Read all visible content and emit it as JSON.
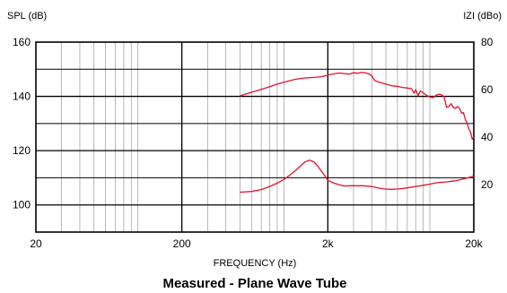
{
  "chart_data": {
    "type": "line",
    "title": "Measured - Plane Wave Tube",
    "xlabel": "FREQUENCY (Hz)",
    "ylabel_left": "SPL (dB)",
    "ylabel_right": "IZI (dBo)",
    "x_scale": "log",
    "xlim": [
      20,
      20000
    ],
    "ylim_left": [
      90,
      160
    ],
    "ylim_right": [
      0,
      80
    ],
    "x_ticks": [
      {
        "value": 20,
        "label": "20"
      },
      {
        "value": 200,
        "label": "200"
      },
      {
        "value": 2000,
        "label": "2k"
      },
      {
        "value": 20000,
        "label": "20k"
      }
    ],
    "y_ticks_left": [
      {
        "value": 100,
        "label": "100"
      },
      {
        "value": 120,
        "label": "120"
      },
      {
        "value": 140,
        "label": "140"
      },
      {
        "value": 160,
        "label": "160"
      }
    ],
    "y_ticks_right": [
      {
        "value": 20,
        "label": "20"
      },
      {
        "value": 40,
        "label": "40"
      },
      {
        "value": 60,
        "label": "60"
      },
      {
        "value": 80,
        "label": "80"
      }
    ],
    "grid": true,
    "colors": {
      "series": "#e8112d",
      "grid_major": "#000000",
      "grid_minor": "#9a9a9a"
    },
    "series": [
      {
        "axis": "left",
        "points": [
          [
            500,
            140.2
          ],
          [
            600,
            141.5
          ],
          [
            700,
            142.6
          ],
          [
            800,
            143.6
          ],
          [
            900,
            144.5
          ],
          [
            1000,
            145.2
          ],
          [
            1100,
            145.8
          ],
          [
            1200,
            146.3
          ],
          [
            1300,
            146.6
          ],
          [
            1400,
            146.8
          ],
          [
            1500,
            146.9
          ],
          [
            1600,
            147.0
          ],
          [
            1700,
            147.1
          ],
          [
            1800,
            147.3
          ],
          [
            1900,
            147.5
          ],
          [
            2000,
            147.8
          ],
          [
            2200,
            148.3
          ],
          [
            2400,
            148.6
          ],
          [
            2600,
            148.4
          ],
          [
            2800,
            148.2
          ],
          [
            3000,
            148.7
          ],
          [
            3200,
            148.5
          ],
          [
            3400,
            148.8
          ],
          [
            3600,
            148.7
          ],
          [
            3800,
            148.3
          ],
          [
            4000,
            147.6
          ],
          [
            4200,
            145.8
          ],
          [
            4500,
            145.2
          ],
          [
            5000,
            144.5
          ],
          [
            5500,
            143.9
          ],
          [
            6000,
            143.7
          ],
          [
            6500,
            143.3
          ],
          [
            7000,
            143.1
          ],
          [
            7500,
            142.8
          ],
          [
            7800,
            141.2
          ],
          [
            8000,
            142.5
          ],
          [
            8300,
            140.3
          ],
          [
            8600,
            142.0
          ],
          [
            9000,
            141.3
          ],
          [
            9500,
            140.4
          ],
          [
            10000,
            139.8
          ],
          [
            10500,
            139.5
          ],
          [
            11000,
            140.4
          ],
          [
            11500,
            140.8
          ],
          [
            12000,
            140.6
          ],
          [
            12500,
            139.9
          ],
          [
            13000,
            136.0
          ],
          [
            13500,
            136.3
          ],
          [
            14000,
            137.3
          ],
          [
            14500,
            135.9
          ],
          [
            15000,
            135.6
          ],
          [
            15500,
            136.3
          ],
          [
            16000,
            135.5
          ],
          [
            16500,
            133.8
          ],
          [
            17000,
            134.0
          ],
          [
            17500,
            131.4
          ],
          [
            18000,
            130.2
          ],
          [
            18500,
            127.9
          ],
          [
            19000,
            126.8
          ],
          [
            19500,
            124.2
          ],
          [
            20000,
            125.1
          ]
        ]
      },
      {
        "axis": "right",
        "points": [
          [
            500,
            16.8
          ],
          [
            600,
            17.1
          ],
          [
            700,
            17.9
          ],
          [
            800,
            19.2
          ],
          [
            900,
            20.6
          ],
          [
            1000,
            22.2
          ],
          [
            1100,
            24.0
          ],
          [
            1200,
            25.9
          ],
          [
            1300,
            27.9
          ],
          [
            1400,
            29.6
          ],
          [
            1500,
            30.3
          ],
          [
            1600,
            29.6
          ],
          [
            1700,
            27.9
          ],
          [
            1800,
            25.8
          ],
          [
            1900,
            23.9
          ],
          [
            2000,
            21.8
          ],
          [
            2200,
            20.6
          ],
          [
            2400,
            19.9
          ],
          [
            2600,
            19.4
          ],
          [
            2800,
            19.5
          ],
          [
            3000,
            19.5
          ],
          [
            3500,
            19.5
          ],
          [
            4000,
            19.2
          ],
          [
            4500,
            18.5
          ],
          [
            5000,
            18.1
          ],
          [
            5500,
            18.0
          ],
          [
            6000,
            18.1
          ],
          [
            7000,
            18.6
          ],
          [
            8000,
            19.2
          ],
          [
            9000,
            19.7
          ],
          [
            10000,
            20.2
          ],
          [
            11000,
            20.7
          ],
          [
            12000,
            21.0
          ],
          [
            13000,
            21.1
          ],
          [
            14000,
            21.4
          ],
          [
            15000,
            21.6
          ],
          [
            16000,
            22.0
          ],
          [
            17000,
            22.4
          ],
          [
            18000,
            22.8
          ],
          [
            19000,
            23.2
          ],
          [
            20000,
            23.6
          ]
        ]
      }
    ]
  }
}
